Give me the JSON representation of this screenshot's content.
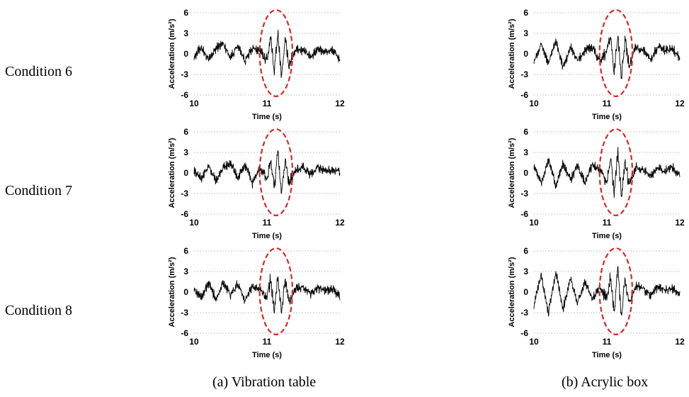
{
  "rows": [
    {
      "label": "Condition 6"
    },
    {
      "label": "Condition 7"
    },
    {
      "label": "Condition 8"
    }
  ],
  "columns": [
    {
      "caption": "(a) Vibration table"
    },
    {
      "caption": "(b) Acrylic box"
    }
  ],
  "axes": {
    "xlabel": "Time (s)",
    "ylabel": "Acceleration (m/s²)",
    "xlim": [
      10,
      12
    ],
    "ylim": [
      -6,
      6
    ],
    "xticks": [
      "10",
      "11",
      "12"
    ],
    "yticks": [
      "6",
      "3",
      "0",
      "-3",
      "-6"
    ],
    "grid": "horizontal dotted"
  },
  "highlight": {
    "shape": "dashed ellipse",
    "color": "#d42a2a",
    "x_range": [
      10.9,
      11.35
    ],
    "y_range": [
      -6.2,
      6.4
    ]
  },
  "chart_data": [
    {
      "type": "line",
      "condition": "Condition 6",
      "panel": "(a) Vibration table",
      "xlim": [
        10,
        12
      ],
      "ylim": [
        -6,
        6
      ],
      "xlabel": "Time (s)",
      "ylabel": "Acceleration (m/s²)",
      "series": [
        {
          "color": "#000000",
          "x": [
            10.0,
            10.1,
            10.2,
            10.3,
            10.4,
            10.5,
            10.6,
            10.7,
            10.8,
            10.9,
            11.0,
            11.05,
            11.1,
            11.15,
            11.2,
            11.25,
            11.3,
            11.4,
            11.5,
            11.6,
            11.7,
            11.8,
            11.9,
            12.0
          ],
          "y": [
            -0.5,
            1.0,
            -1.0,
            0.8,
            1.5,
            -0.5,
            1.2,
            -1.0,
            0.8,
            0.5,
            -1.0,
            2.5,
            -2.5,
            2.8,
            -3.2,
            2.0,
            -1.5,
            0.8,
            0.5,
            -0.5,
            0.8,
            0.3,
            0.5,
            -0.8
          ]
        }
      ]
    },
    {
      "type": "line",
      "condition": "Condition 6",
      "panel": "(b) Acrylic box",
      "xlim": [
        10,
        12
      ],
      "ylim": [
        -6,
        6
      ],
      "xlabel": "Time (s)",
      "ylabel": "Acceleration (m/s²)",
      "series": [
        {
          "color": "#000000",
          "x": [
            10.0,
            10.1,
            10.2,
            10.3,
            10.4,
            10.5,
            10.6,
            10.7,
            10.8,
            10.9,
            11.0,
            11.05,
            11.1,
            11.15,
            11.2,
            11.25,
            11.3,
            11.4,
            11.5,
            11.6,
            11.7,
            11.8,
            11.9,
            12.0
          ],
          "y": [
            -1.0,
            1.5,
            -1.5,
            2.0,
            -2.0,
            1.0,
            -1.0,
            0.5,
            1.0,
            -1.0,
            0.5,
            2.5,
            -3.0,
            3.0,
            -3.5,
            2.0,
            -1.5,
            1.0,
            0.5,
            -0.8,
            1.0,
            0.5,
            0.8,
            -0.5
          ]
        }
      ]
    },
    {
      "type": "line",
      "condition": "Condition 7",
      "panel": "(a) Vibration table",
      "xlim": [
        10,
        12
      ],
      "ylim": [
        -6,
        6
      ],
      "xlabel": "Time (s)",
      "ylabel": "Acceleration (m/s²)",
      "series": [
        {
          "color": "#000000",
          "x": [
            10.0,
            10.1,
            10.2,
            10.3,
            10.4,
            10.5,
            10.6,
            10.7,
            10.8,
            10.9,
            11.0,
            11.05,
            11.1,
            11.15,
            11.2,
            11.25,
            11.3,
            11.4,
            11.5,
            11.6,
            11.7,
            11.8,
            11.9,
            12.0
          ],
          "y": [
            0.3,
            -0.8,
            1.0,
            -1.2,
            0.8,
            1.5,
            -0.8,
            1.2,
            -1.5,
            0.8,
            -1.0,
            2.0,
            -2.5,
            3.0,
            -3.0,
            2.0,
            -1.5,
            0.5,
            0.8,
            -0.3,
            0.8,
            0.3,
            0.5,
            0.2
          ]
        }
      ]
    },
    {
      "type": "line",
      "condition": "Condition 7",
      "panel": "(b) Acrylic box",
      "xlim": [
        10,
        12
      ],
      "ylim": [
        -6,
        6
      ],
      "xlabel": "Time (s)",
      "ylabel": "Acceleration (m/s²)",
      "series": [
        {
          "color": "#000000",
          "x": [
            10.0,
            10.1,
            10.2,
            10.3,
            10.4,
            10.5,
            10.6,
            10.7,
            10.8,
            10.9,
            11.0,
            11.05,
            11.1,
            11.15,
            11.2,
            11.25,
            11.3,
            11.4,
            11.5,
            11.6,
            11.7,
            11.8,
            11.9,
            12.0
          ],
          "y": [
            1.0,
            -1.5,
            2.0,
            -2.0,
            1.5,
            -1.0,
            1.0,
            -1.5,
            1.2,
            0.5,
            -1.5,
            2.5,
            -3.0,
            3.0,
            -3.5,
            2.0,
            -1.5,
            0.8,
            0.5,
            -0.5,
            0.8,
            0.3,
            0.8,
            -0.3
          ]
        }
      ]
    },
    {
      "type": "line",
      "condition": "Condition 8",
      "panel": "(a) Vibration table",
      "xlim": [
        10,
        12
      ],
      "ylim": [
        -6,
        6
      ],
      "xlabel": "Time (s)",
      "ylabel": "Acceleration (m/s²)",
      "series": [
        {
          "color": "#000000",
          "x": [
            10.0,
            10.1,
            10.2,
            10.3,
            10.4,
            10.5,
            10.6,
            10.7,
            10.8,
            10.9,
            11.0,
            11.05,
            11.1,
            11.15,
            11.2,
            11.25,
            11.3,
            11.4,
            11.5,
            11.6,
            11.7,
            11.8,
            11.9,
            12.0
          ],
          "y": [
            0.5,
            -0.8,
            1.2,
            -1.0,
            1.5,
            -0.5,
            1.2,
            -1.2,
            0.8,
            0.5,
            -1.0,
            2.0,
            -3.0,
            2.5,
            -3.2,
            2.0,
            -1.5,
            0.5,
            0.8,
            -0.3,
            0.5,
            0.3,
            0.5,
            -0.8
          ]
        }
      ]
    },
    {
      "type": "line",
      "condition": "Condition 8",
      "panel": "(b) Acrylic box",
      "xlim": [
        10,
        12
      ],
      "ylim": [
        -6,
        6
      ],
      "xlabel": "Time (s)",
      "ylabel": "Acceleration (m/s²)",
      "series": [
        {
          "color": "#000000",
          "x": [
            10.0,
            10.1,
            10.2,
            10.3,
            10.4,
            10.5,
            10.6,
            10.7,
            10.8,
            10.9,
            11.0,
            11.05,
            11.1,
            11.15,
            11.2,
            11.25,
            11.3,
            11.4,
            11.5,
            11.6,
            11.7,
            11.8,
            11.9,
            12.0
          ],
          "y": [
            -2.0,
            2.5,
            -3.0,
            3.0,
            -2.5,
            2.0,
            -1.5,
            1.5,
            -1.0,
            0.8,
            -1.0,
            2.5,
            -3.0,
            3.5,
            -3.5,
            2.0,
            -1.5,
            1.0,
            0.5,
            -0.5,
            0.8,
            0.3,
            0.5,
            -0.3
          ]
        }
      ]
    }
  ]
}
